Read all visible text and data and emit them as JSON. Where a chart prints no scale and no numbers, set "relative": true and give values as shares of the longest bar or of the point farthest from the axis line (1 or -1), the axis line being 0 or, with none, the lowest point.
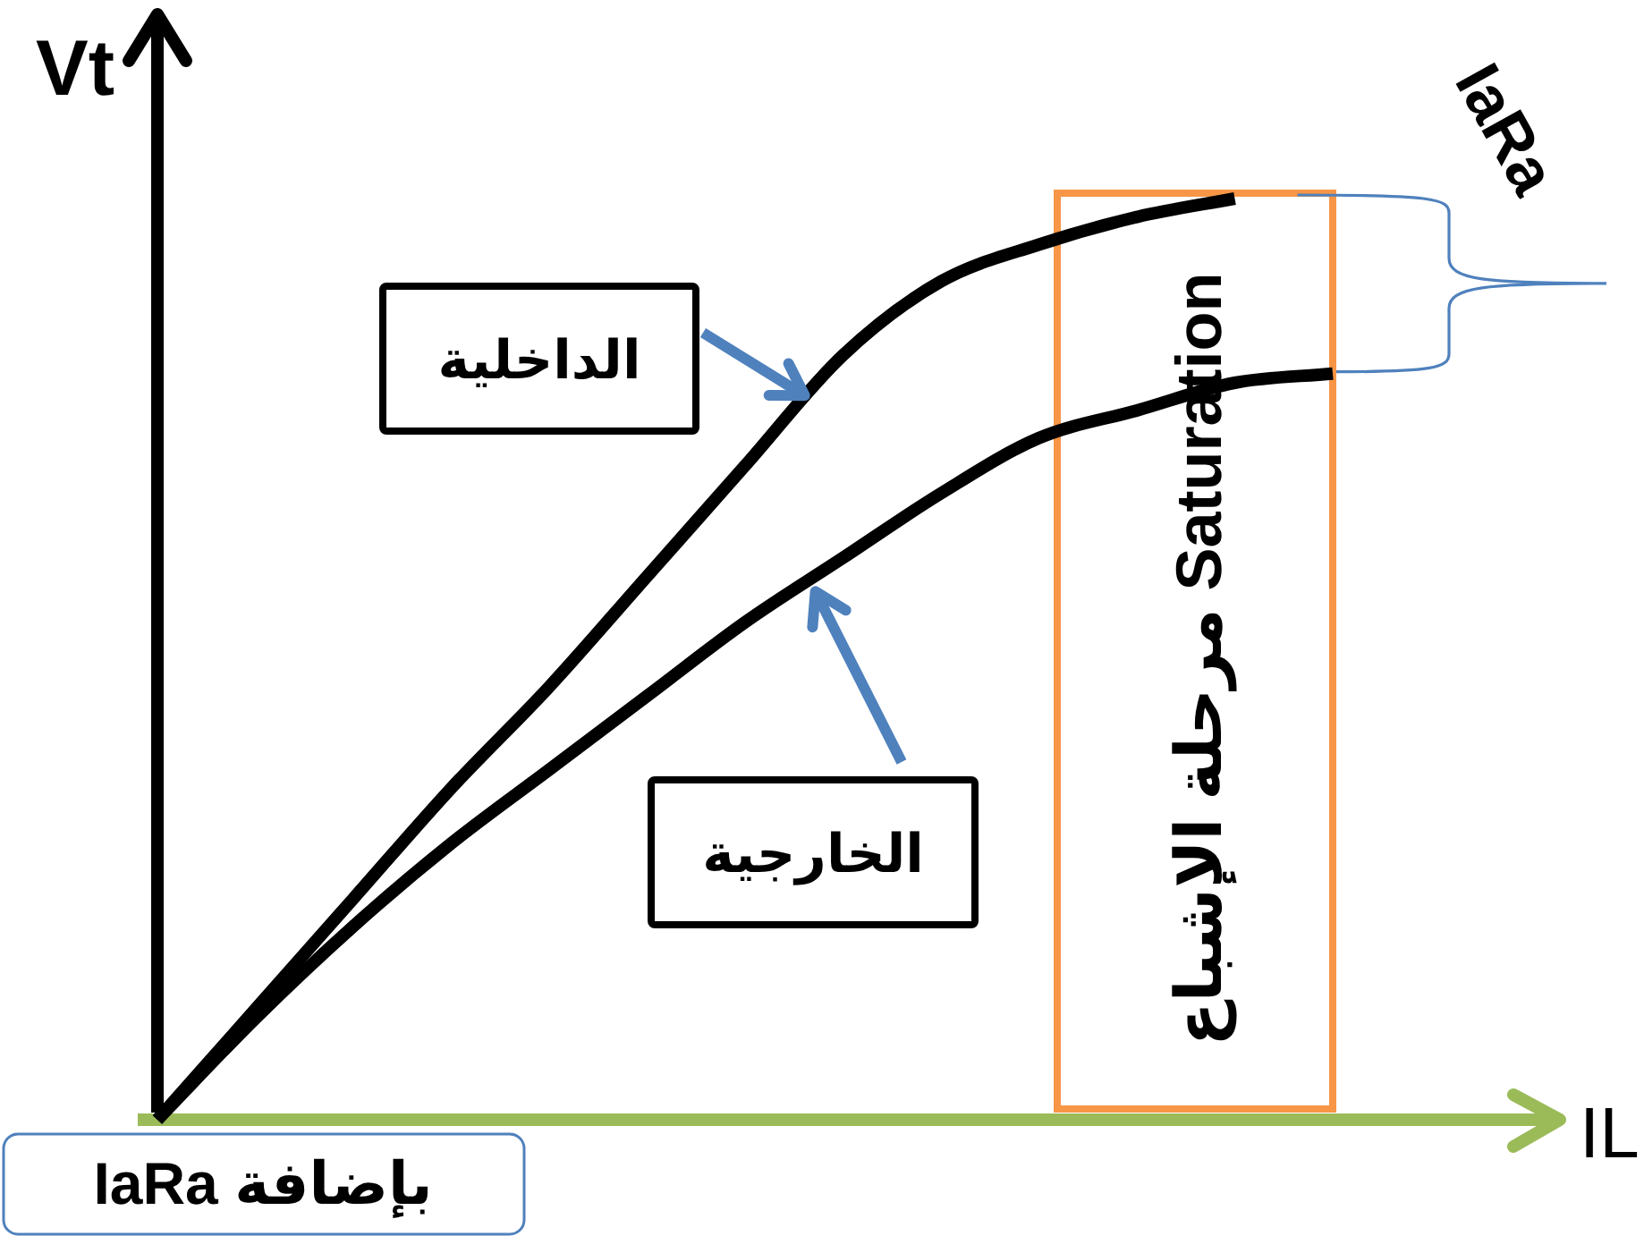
{
  "chart_data": {
    "type": "line",
    "relative": true,
    "xlabel": "IL",
    "ylabel": "Vt",
    "categories": [
      null,
      null,
      null,
      null,
      null,
      null,
      null,
      null,
      null,
      null,
      null,
      null,
      null
    ],
    "series": [
      {
        "name": "الداخلية",
        "color": "#000000",
        "values": [
          0,
          0.12,
          0.24,
          0.36,
          0.47,
          0.59,
          0.71,
          0.83,
          0.91,
          0.95,
          0.98,
          1,
          null
        ]
      },
      {
        "name": "الخارجية",
        "color": "#000000",
        "values": [
          0,
          0.11,
          0.21,
          0.3,
          0.38,
          0.46,
          0.54,
          0.61,
          0.68,
          0.74,
          0.77,
          0.8,
          0.81
        ]
      }
    ],
    "annotations": [
      "مرحلة الإشباع Saturation",
      "IaRa",
      "بإضافة IaRa"
    ]
  }
}
